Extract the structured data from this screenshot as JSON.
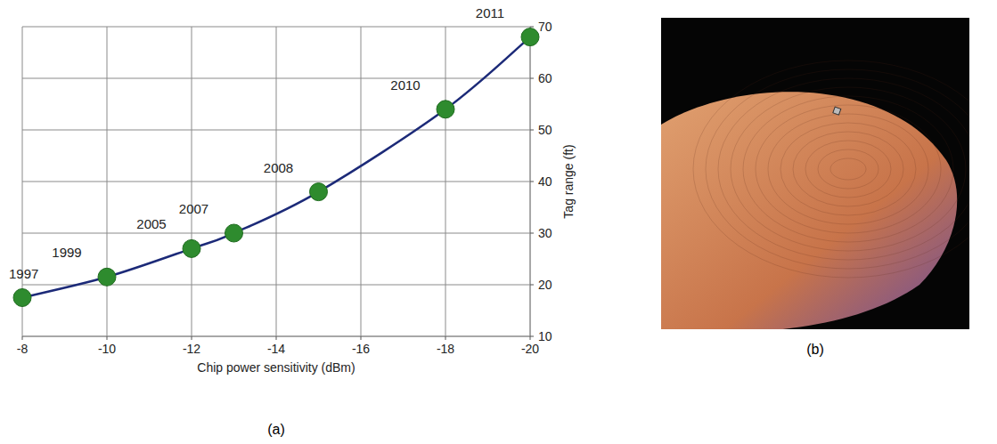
{
  "chart_data": {
    "type": "line",
    "x_label": "Chip power sensitivity (dBm)",
    "y_label": "Tag range (ft)",
    "x": [
      -8,
      -10,
      -12,
      -13,
      -15,
      -18,
      -20
    ],
    "series": [
      {
        "name": null,
        "color": "#1c2a78",
        "marker": "circle",
        "marker_color": "#2e8b2e",
        "values": [
          17.5,
          21.5,
          27,
          30,
          38,
          54,
          68
        ]
      }
    ],
    "point_labels": [
      "1997",
      "1999",
      "2005",
      "2007",
      "2008",
      "2010",
      "2011"
    ],
    "xlim": [
      -8,
      -20
    ],
    "xticks": [
      -8,
      -10,
      -12,
      -14,
      -16,
      -18,
      -20
    ],
    "ylim": [
      10,
      70
    ],
    "yticks": [
      10,
      20,
      30,
      40,
      50,
      60,
      70
    ],
    "grid": true
  },
  "figure": {
    "panel_labels": [
      "(a)",
      "(b)"
    ]
  }
}
